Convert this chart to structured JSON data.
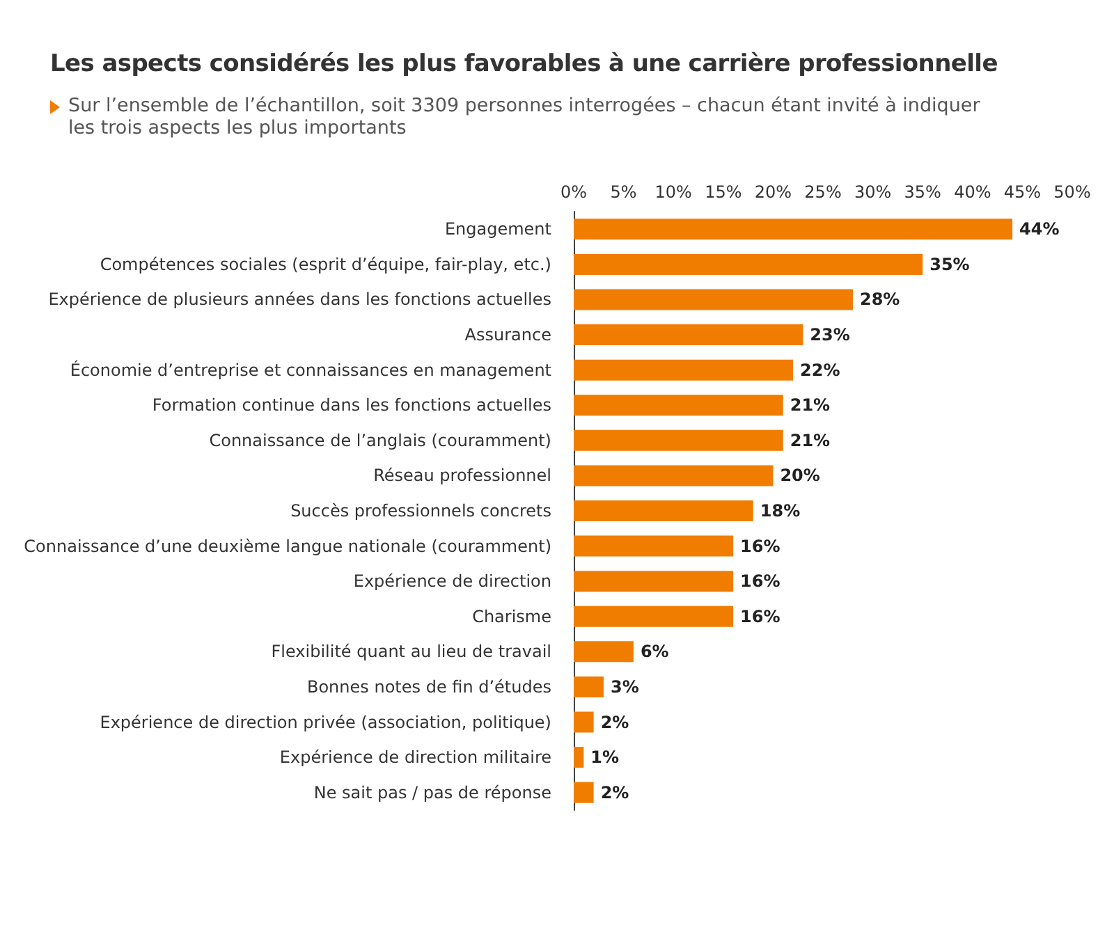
{
  "chart_data": {
    "type": "bar",
    "orientation": "horizontal",
    "title": "Les aspects considérés les plus favorables à une carrière professionnelle",
    "subtitle": "Sur l’ensemble de l’échantillon, soit 3309 personnes interrogées – chacun étant invité à indiquer les trois aspects les plus importants",
    "categories": [
      "Engagement",
      "Compétences sociales (esprit d’équipe, fair-play, etc.)",
      "Expérience de plusieurs années dans les fonctions actuelles",
      "Assurance",
      "Économie d’entreprise et connaissances en management",
      "Formation continue dans les fonctions actuelles",
      "Connaissance de l’anglais (couramment)",
      "Réseau professionnel",
      "Succès professionnels concrets",
      "Connaissance d’une deuxième langue nationale (couramment)",
      "Expérience de direction",
      "Charisme",
      "Flexibilité quant au lieu de travail",
      "Bonnes notes de fin d’études",
      "Expérience de direction privée (association, politique)",
      "Expérience de direction militaire",
      "Ne sait pas / pas de réponse"
    ],
    "values": [
      44,
      35,
      28,
      23,
      22,
      21,
      21,
      20,
      18,
      16,
      16,
      16,
      6,
      3,
      2,
      1,
      2
    ],
    "value_labels": [
      "44%",
      "35%",
      "28%",
      "23%",
      "22%",
      "21%",
      "21%",
      "20%",
      "18%",
      "16%",
      "16%",
      "16%",
      "6%",
      "3%",
      "2%",
      "1%",
      "2%"
    ],
    "color": "#f07d00",
    "xlim": [
      0,
      50
    ],
    "xticks": [
      {
        "value": 0,
        "label": "0%"
      },
      {
        "value": 5,
        "label": "5%"
      },
      {
        "value": 10,
        "label": "10%"
      },
      {
        "value": 15,
        "label": "15%"
      },
      {
        "value": 20,
        "label": "20%"
      },
      {
        "value": 25,
        "label": "25%"
      },
      {
        "value": 30,
        "label": "30%"
      },
      {
        "value": 35,
        "label": "35%"
      },
      {
        "value": 40,
        "label": "40%"
      },
      {
        "value": 45,
        "label": "45%"
      },
      {
        "value": 50,
        "label": "50%"
      }
    ]
  }
}
